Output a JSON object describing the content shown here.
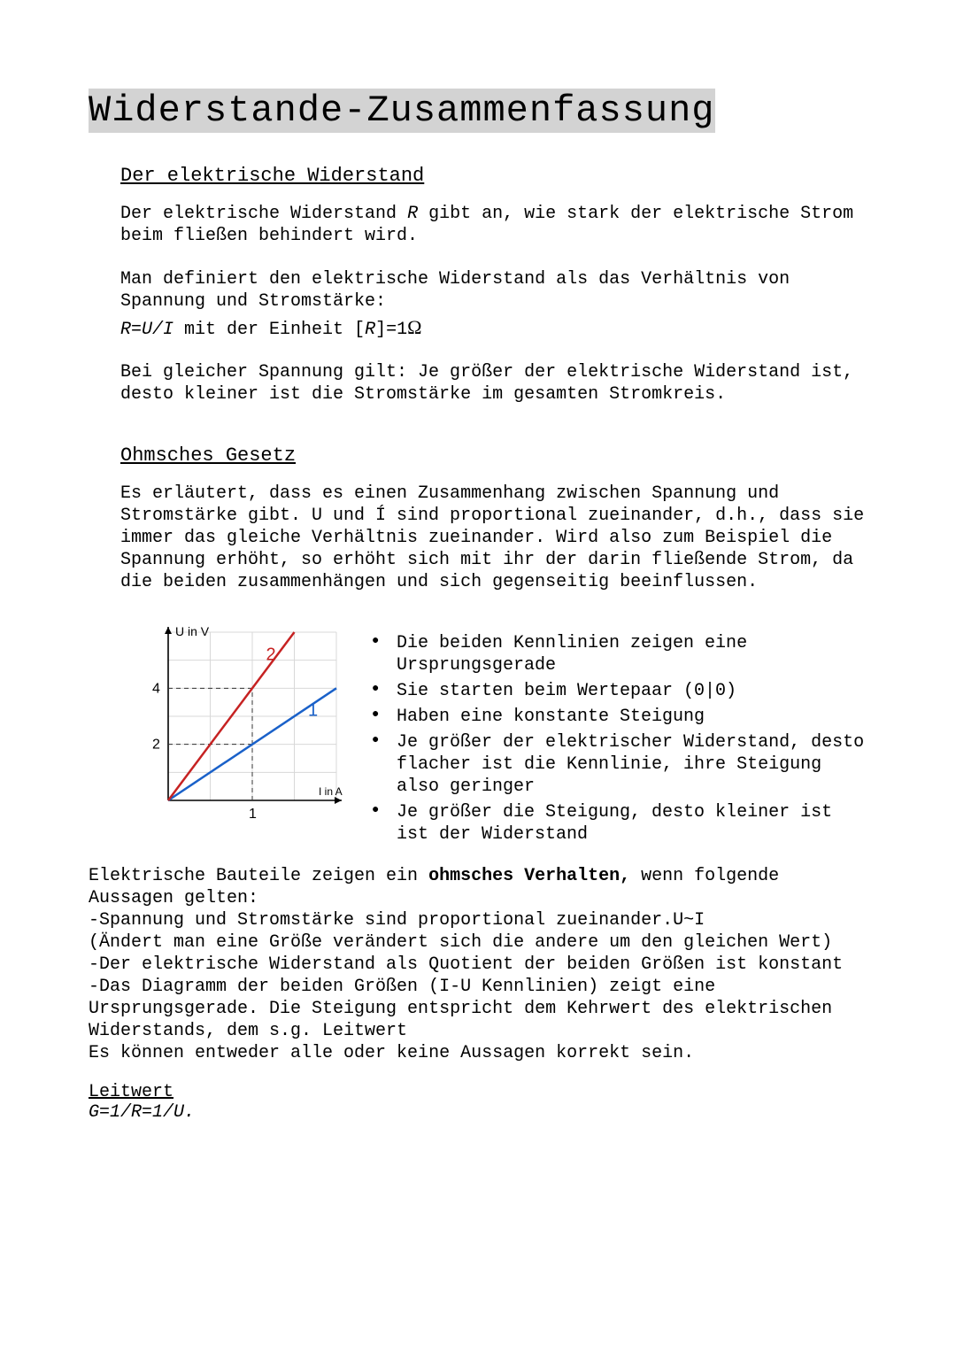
{
  "title": "Widerstande-Zusammenfassung",
  "section1": {
    "heading": "Der elektrische Widerstand",
    "p1a": "Der elektrische Widerstand ",
    "p1_R": "R",
    "p1b": " gibt an, wie stark der elektrische Strom beim fließen behindert wird.",
    "p2": "Man definiert den elektrische Widerstand als das Verhältnis von Spannung und Stromstärke:",
    "formula_a": "R=U/I",
    "formula_mid": "  mit der Einheit [",
    "formula_R2": "R",
    "formula_eq": "]=1",
    "formula_ohm": "Ω",
    "p3": "Bei gleicher Spannung gilt: Je größer der elektrische Widerstand ist, desto kleiner ist die Stromstärke im gesamten Stromkreis."
  },
  "section2": {
    "heading": "Ohmsches Gesetz",
    "p1": "Es erläutert, dass es einen Zusammenhang zwischen Spannung und Stromstärke gibt. U und Í sind proportional zueinander, d.h., dass sie immer das gleiche Verhältnis zueinander. Wird also zum Beispiel die Spannung erhöht, so erhöht sich mit ihr der darin fließende Strom, da die beiden zusammenhängen und sich gegenseitig beeinflussen."
  },
  "chart": {
    "y_axis_label": "U in V",
    "x_axis_label": "I in A",
    "y_ticks": [
      "2",
      "4"
    ],
    "x_ticks": [
      "1"
    ],
    "line1_label": "1",
    "line2_label": "2",
    "background_color": "#ffffff",
    "grid_color": "#d8d8d8",
    "axis_color": "#000000",
    "line1_color": "#1a61c9",
    "line2_color": "#c62222",
    "dash_color": "#333333",
    "label_font": "Arial, Helvetica, sans-serif"
  },
  "bullets": [
    "Die beiden Kennlinien zeigen eine Ursprungsgerade",
    "Sie starten beim Wertepaar (0|0)",
    "Haben eine konstante Steigung",
    "Je größer der elektrischer Widerstand, desto flacher ist die Kennlinie, ihre Steigung also geringer",
    "Je größer die Steigung, desto kleiner ist ist der Widerstand"
  ],
  "after_text": {
    "line_a": "Elektrische Bauteile zeigen ein ",
    "line_bold": "ohmsches Verhalten,",
    "line_b": " wenn folgende Aussagen gelten:",
    "l1": "-Spannung und Stromstärke sind proportional zueinander.U~I",
    "l2": "(Ändert man eine Größe verändert sich die andere um den gleichen Wert)",
    "l3": "-Der elektrische Widerstand als Quotient der beiden Größen ist konstant",
    "l4": "-Das Diagramm der beiden Größen (I-U Kennlinien) zeigt eine Ursprungsgerade. Die Steigung entspricht dem Kehrwert des elektrischen Widerstands, dem s.g. Leitwert",
    "l5": "Es können entweder alle oder keine Aussagen korrekt sein."
  },
  "leitwert": {
    "heading": "Leitwert",
    "formula": "G=1/R=1/U."
  }
}
